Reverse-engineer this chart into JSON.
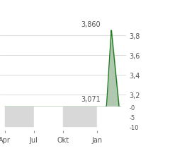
{
  "background_color": "#ffffff",
  "x_labels": [
    "Apr",
    "Jul",
    "Okt",
    "Jan"
  ],
  "line_color": "#1a7a1a",
  "fill_color": "#b0c8b0",
  "ylim_main": [
    3.071,
    3.97
  ],
  "yticks_main": [
    3.2,
    3.4,
    3.6,
    3.8
  ],
  "yticklabels_main": [
    "3,2",
    "3,4",
    "3,6",
    "3,8"
  ],
  "xlim": [
    -0.5,
    12.5
  ],
  "annotation_high": "3,860",
  "annotation_low": "3,071",
  "grid_color": "#cccccc",
  "tick_color": "#555555",
  "font_size": 7,
  "vol_ylim": [
    -12,
    0
  ],
  "vol_yticks": [
    -10,
    -5,
    0
  ],
  "vol_yticklabels": [
    "-10",
    "-5",
    "-0"
  ],
  "spike_x_start": 10.5,
  "spike_x_peak": 11.0,
  "spike_x_mid": 11.3,
  "spike_x_end": 11.8,
  "spike_low": 3.071,
  "spike_high": 3.86,
  "spike_mid": 3.57,
  "n_total": 12
}
